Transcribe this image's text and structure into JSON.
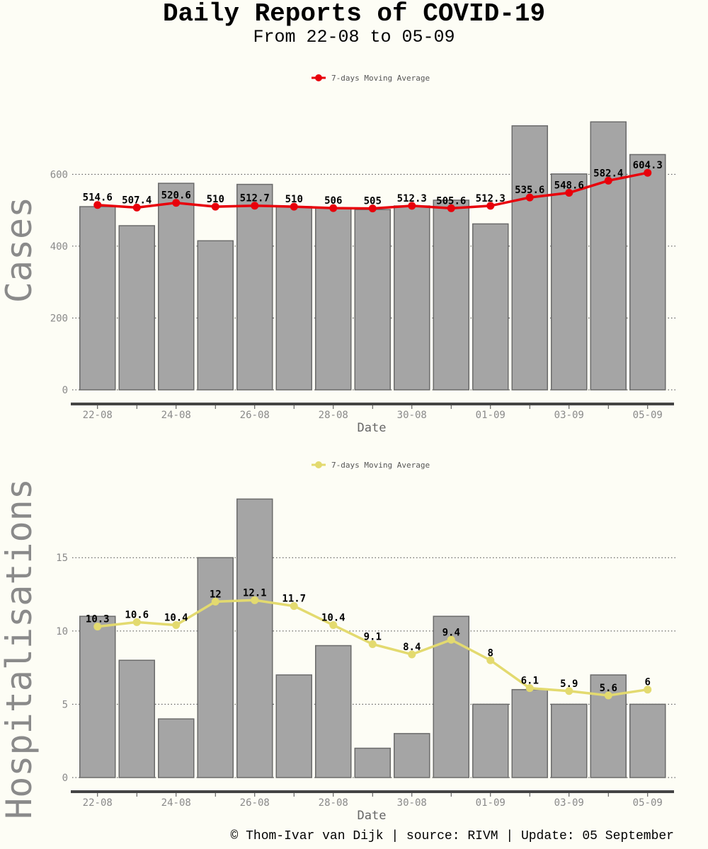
{
  "title": "Daily Reports of COVID-19",
  "subtitle": "From 22-08 to 05-09",
  "footer": "© Thom-Ivar van Dijk | source: RIVM | Update: 05 September",
  "colors": {
    "background": "#fdfdf5",
    "bar_fill": "#a5a5a5",
    "bar_stroke": "#6b6b6b",
    "cases_line": "#e8000b",
    "hosp_line": "#e3da6f",
    "axis": "#444444",
    "grid": "#444444",
    "tick_text": "#8a8a8a",
    "ylabel_text": "#8a8a8a"
  },
  "chart_data": [
    {
      "type": "bar",
      "id": "cases",
      "ylabel": "Cases",
      "xlabel": "Date",
      "legend_label": "7-days Moving Average",
      "legend_position": "top-center",
      "categories": [
        "22-08",
        "23-08",
        "24-08",
        "25-08",
        "26-08",
        "27-08",
        "28-08",
        "29-08",
        "30-08",
        "31-08",
        "01-09",
        "02-09",
        "03-09",
        "04-09",
        "05-09"
      ],
      "x_tick_labels": [
        "22-08",
        "",
        "24-08",
        "",
        "26-08",
        "",
        "28-08",
        "",
        "30-08",
        "",
        "01-09",
        "",
        "03-09",
        "",
        "05-09"
      ],
      "values": [
        510,
        457,
        575,
        415,
        572,
        510,
        506,
        502,
        512,
        528,
        462,
        735,
        601,
        746,
        655
      ],
      "moving_average": [
        514.6,
        507.4,
        520.6,
        510,
        512.7,
        510,
        506,
        505,
        512.3,
        505.6,
        512.3,
        535.6,
        548.6,
        582.4,
        604.3
      ],
      "ma_labels": [
        "514.6",
        "507.4",
        "520.6",
        "510",
        "512.7",
        "510",
        "506",
        "505",
        "512.3",
        "505.6",
        "512.3",
        "535.6",
        "548.6",
        "582.4",
        "604.3"
      ],
      "yticks": [
        0,
        200,
        400,
        600
      ],
      "ylim": [
        0,
        780
      ],
      "grid": "horizontal-dotted"
    },
    {
      "type": "bar",
      "id": "hosp",
      "ylabel": "Hospitalisations",
      "xlabel": "Date",
      "legend_label": "7-days Moving Average",
      "legend_position": "top-center",
      "categories": [
        "22-08",
        "23-08",
        "24-08",
        "25-08",
        "26-08",
        "27-08",
        "28-08",
        "29-08",
        "30-08",
        "31-08",
        "01-09",
        "02-09",
        "03-09",
        "04-09",
        "05-09"
      ],
      "x_tick_labels": [
        "22-08",
        "",
        "24-08",
        "",
        "26-08",
        "",
        "28-08",
        "",
        "30-08",
        "",
        "01-09",
        "",
        "03-09",
        "",
        "05-09"
      ],
      "values": [
        11,
        8,
        4,
        15,
        19,
        7,
        9,
        2,
        3,
        11,
        5,
        6,
        5,
        7,
        5
      ],
      "moving_average": [
        10.3,
        10.6,
        10.4,
        12,
        12.1,
        11.7,
        10.4,
        9.1,
        8.4,
        9.4,
        8,
        6.1,
        5.9,
        5.6,
        6
      ],
      "ma_labels": [
        "10.3",
        "10.6",
        "10.4",
        "12",
        "12.1",
        "11.7",
        "10.4",
        "9.1",
        "8.4",
        "9.4",
        "8",
        "6.1",
        "5.9",
        "5.6",
        "6"
      ],
      "yticks": [
        0,
        5,
        10,
        15
      ],
      "ylim": [
        0,
        19.5
      ],
      "grid": "horizontal-dotted"
    }
  ]
}
